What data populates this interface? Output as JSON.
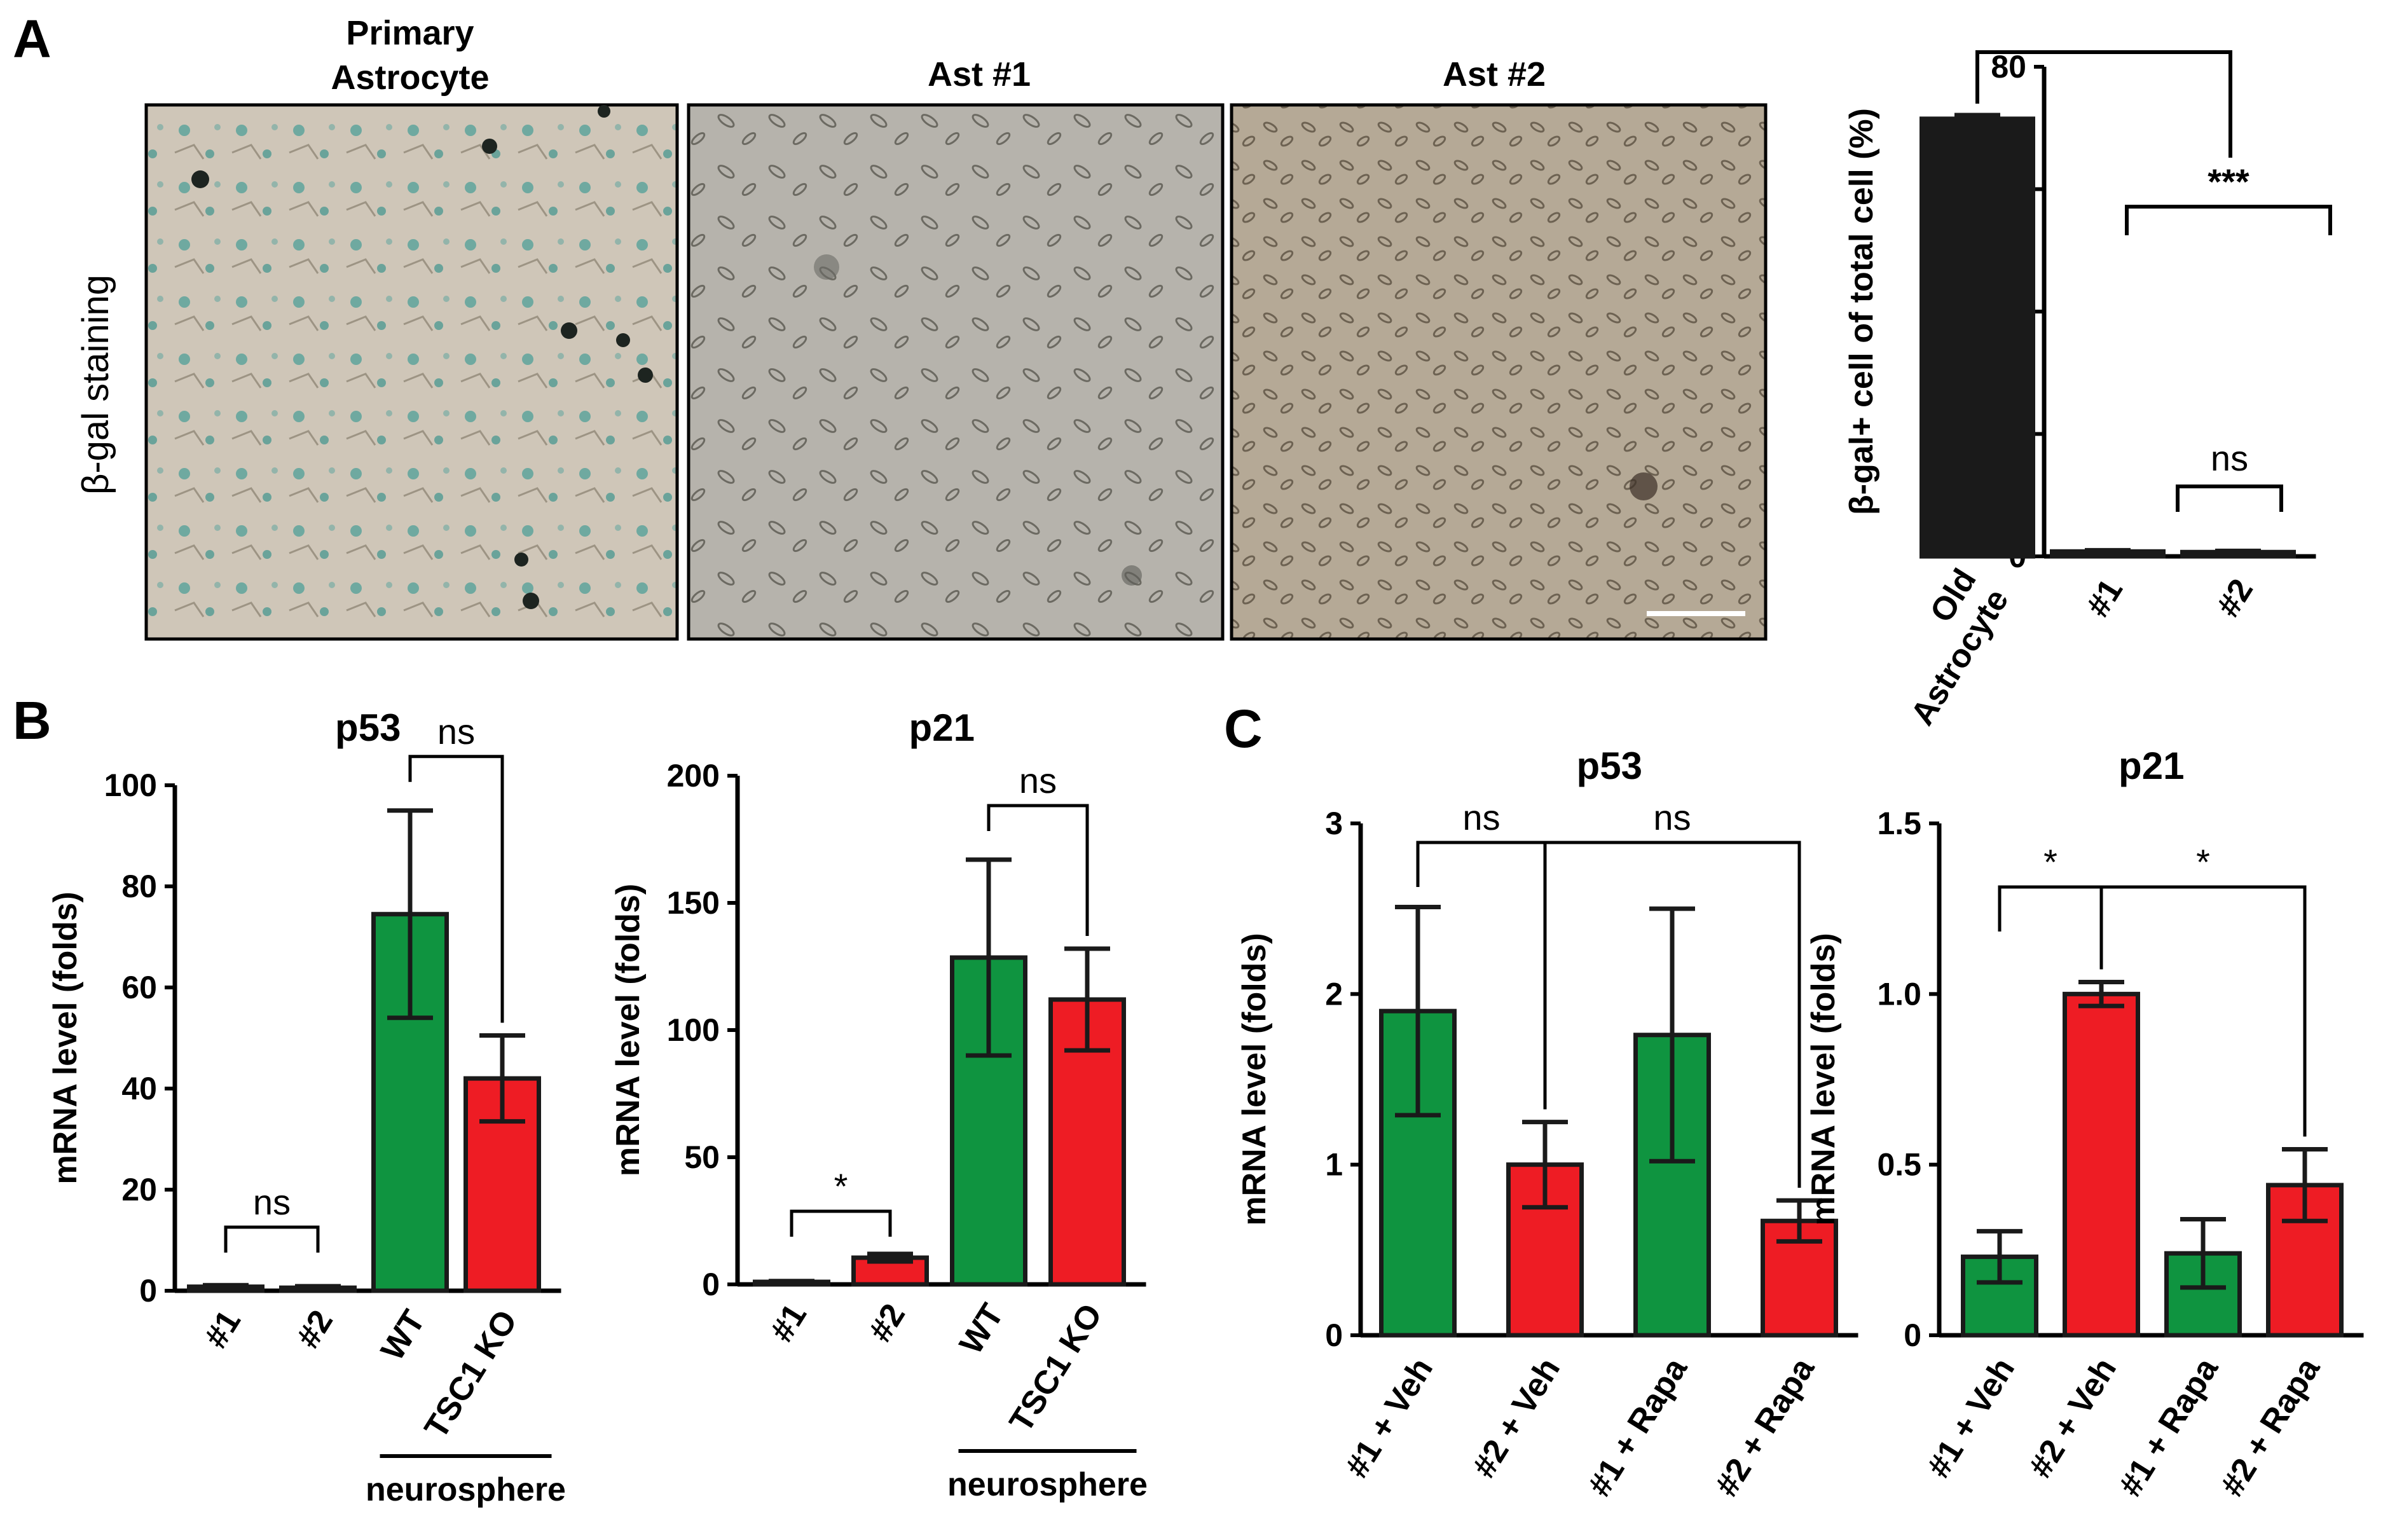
{
  "panel_labels": {
    "a": "A",
    "b": "B",
    "c": "C"
  },
  "micrographs": {
    "row_label": "β-gal staining",
    "images": [
      {
        "title_line1": "Primary",
        "title_line2": "Astrocyte"
      },
      {
        "title_line1": "",
        "title_line2": "Ast #1"
      },
      {
        "title_line1": "",
        "title_line2": "Ast #2"
      }
    ]
  },
  "colors": {
    "green": "#0f9440",
    "red": "#ee1c24",
    "black": "#1a1a1a"
  },
  "chart_data": [
    {
      "id": "A-quant",
      "type": "bar",
      "title": "",
      "ylabel": "β-gal+ cell of total cell (%)",
      "ylim": [
        0,
        80
      ],
      "yticks": [
        "0",
        "20",
        "40",
        "60",
        "80"
      ],
      "categories": [
        "Old Astrocyte",
        "#1",
        "#2"
      ],
      "category_lines": [
        [
          "Old",
          "Astrocyte"
        ],
        [
          "#1"
        ],
        [
          "#2"
        ]
      ],
      "values": [
        71.5,
        0.8,
        0.7
      ],
      "errors": [
        0.6,
        0.2,
        0.2
      ],
      "colors": [
        "black",
        "black",
        "black"
      ],
      "significance": [
        {
          "from": 0,
          "to": "group12",
          "label": ""
        },
        {
          "from": 1,
          "to": 2,
          "label": "***",
          "wide": true
        },
        {
          "from": 1,
          "to": 2,
          "label": "ns"
        }
      ]
    },
    {
      "id": "B-p53",
      "type": "bar",
      "title": "p53",
      "ylabel": "mRNA level (folds)",
      "ylim": [
        0,
        100
      ],
      "yticks": [
        "0",
        "20",
        "40",
        "60",
        "80",
        "100"
      ],
      "categories": [
        "#1",
        "#2",
        "WT",
        "TSC1 KO"
      ],
      "values": [
        0.8,
        0.6,
        74.5,
        42.0
      ],
      "errors": [
        0.3,
        0.3,
        20.5,
        8.5
      ],
      "colors": [
        "green",
        "red",
        "green",
        "red"
      ],
      "group_label": "neurosphere",
      "significance": [
        {
          "from": 0,
          "to": 1,
          "label": "ns"
        },
        {
          "from": 2,
          "to": 3,
          "label": "ns"
        }
      ]
    },
    {
      "id": "B-p21",
      "type": "bar",
      "title": "p21",
      "ylabel": "mRNA level (folds)",
      "ylim": [
        0,
        200
      ],
      "yticks": [
        "0",
        "50",
        "100",
        "150",
        "200"
      ],
      "categories": [
        "#1",
        "#2",
        "WT",
        "TSC1 KO"
      ],
      "values": [
        1.0,
        10.5,
        128.5,
        112.0
      ],
      "errors": [
        0.3,
        1.5,
        38.5,
        20.0
      ],
      "colors": [
        "green",
        "red",
        "green",
        "red"
      ],
      "group_label": "neurosphere",
      "significance": [
        {
          "from": 0,
          "to": 1,
          "label": "*"
        },
        {
          "from": 2,
          "to": 3,
          "label": "ns"
        }
      ]
    },
    {
      "id": "C-p53",
      "type": "bar",
      "title": "p53",
      "ylabel": "mRNA level (folds)",
      "ylim": [
        0,
        3
      ],
      "yticks": [
        "0",
        "1",
        "2",
        "3"
      ],
      "categories": [
        "#1 + Veh",
        "#2 + Veh",
        "#1 + Rapa",
        "#2 + Rapa"
      ],
      "values": [
        1.9,
        1.0,
        1.76,
        0.67
      ],
      "errors": [
        0.61,
        0.25,
        0.74,
        0.12
      ],
      "colors": [
        "green",
        "red",
        "green",
        "red"
      ],
      "significance": [
        {
          "from": 0,
          "to": 1,
          "label": "ns"
        },
        {
          "from": 1,
          "to": 3,
          "label": "ns"
        }
      ]
    },
    {
      "id": "C-p21",
      "type": "bar",
      "title": "p21",
      "ylabel": "mRNA level (folds)",
      "ylim": [
        0,
        1.5
      ],
      "yticks": [
        "0",
        "0.5",
        "1.0",
        "1.5"
      ],
      "categories": [
        "#1 + Veh",
        "#2 + Veh",
        "#1 + Rapa",
        "#2 + Rapa"
      ],
      "values": [
        0.23,
        1.0,
        0.24,
        0.44
      ],
      "errors": [
        0.075,
        0.035,
        0.1,
        0.105
      ],
      "colors": [
        "green",
        "red",
        "green",
        "red"
      ],
      "significance": [
        {
          "from": 0,
          "to": 1,
          "label": "*"
        },
        {
          "from": 1,
          "to": 3,
          "label": "*"
        }
      ]
    }
  ]
}
